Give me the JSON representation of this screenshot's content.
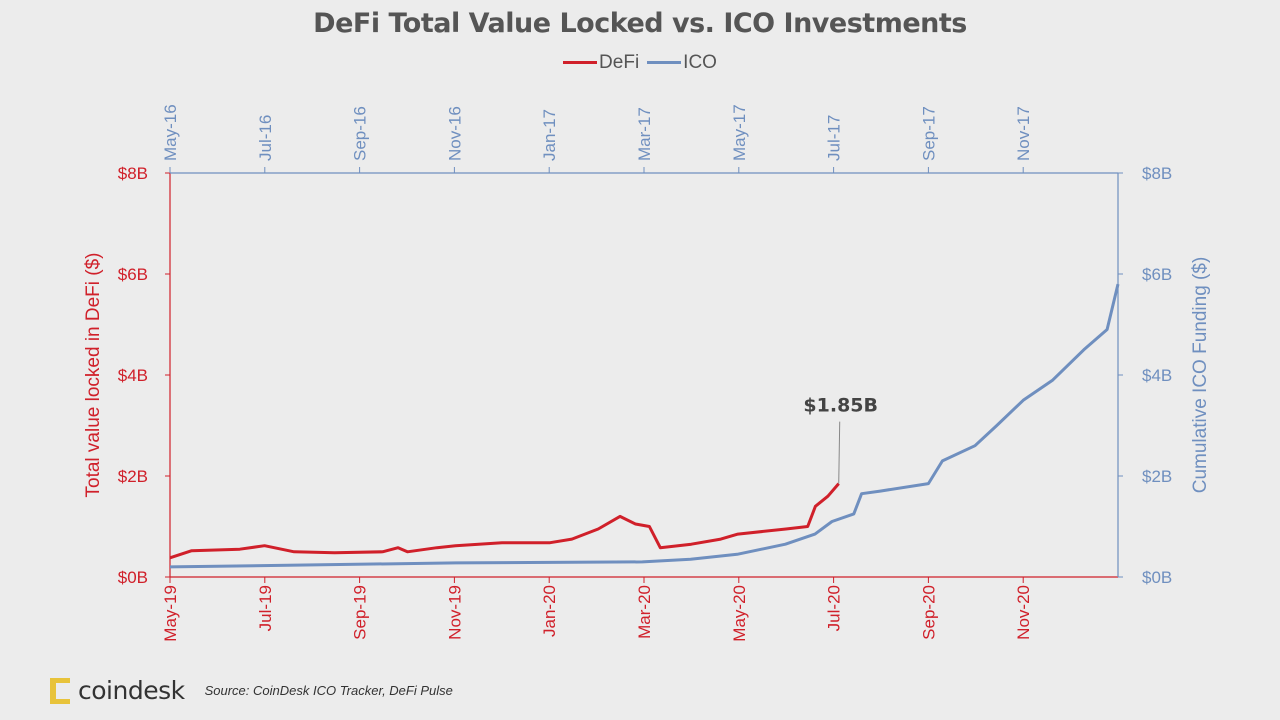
{
  "chart_data": {
    "type": "line",
    "title": "DeFi Total Value Locked vs. ICO Investments",
    "legend": {
      "placement": "top-center",
      "entries": [
        "DeFi",
        "ICO"
      ]
    },
    "grid": false,
    "axes": {
      "left_y": {
        "label": "Total value locked in DeFi ($)",
        "range": [
          0,
          8
        ],
        "ticks": [
          "$0B",
          "$2B",
          "$4B",
          "$6B",
          "$8B"
        ],
        "color": "#d0202a"
      },
      "right_y": {
        "label": "Cumulative ICO Funding ($)",
        "range": [
          0,
          8
        ],
        "ticks": [
          "$0B",
          "$2B",
          "$4B",
          "$6B",
          "$8B"
        ],
        "color": "#6f8fbf"
      },
      "bottom_x": {
        "range": [
          "2019-05-01",
          "2021-01-01"
        ],
        "ticks": [
          "May-19",
          "Jul-19",
          "Sep-19",
          "Nov-19",
          "Jan-20",
          "Mar-20",
          "May-20",
          "Jul-20",
          "Sep-20",
          "Nov-20"
        ],
        "color": "#d0202a"
      },
      "top_x": {
        "range": [
          "2016-05-01",
          "2018-01-01"
        ],
        "ticks": [
          "May-16",
          "Jul-16",
          "Sep-16",
          "Nov-16",
          "Jan-17",
          "Mar-17",
          "May-17",
          "Jul-17",
          "Sep-17",
          "Nov-17"
        ],
        "color": "#6f8fbf"
      }
    },
    "series": [
      {
        "name": "DeFi",
        "axis": "bottom-left",
        "color": "#d0202a",
        "unit": "$B",
        "points": [
          [
            "2019-05-01",
            0.38
          ],
          [
            "2019-05-15",
            0.52
          ],
          [
            "2019-06-15",
            0.55
          ],
          [
            "2019-07-01",
            0.62
          ],
          [
            "2019-07-20",
            0.5
          ],
          [
            "2019-08-15",
            0.48
          ],
          [
            "2019-09-15",
            0.5
          ],
          [
            "2019-09-25",
            0.58
          ],
          [
            "2019-10-01",
            0.5
          ],
          [
            "2019-10-20",
            0.58
          ],
          [
            "2019-11-01",
            0.62
          ],
          [
            "2019-12-01",
            0.68
          ],
          [
            "2020-01-01",
            0.68
          ],
          [
            "2020-01-15",
            0.75
          ],
          [
            "2020-02-01",
            0.95
          ],
          [
            "2020-02-15",
            1.2
          ],
          [
            "2020-02-25",
            1.05
          ],
          [
            "2020-03-05",
            1.0
          ],
          [
            "2020-03-12",
            0.58
          ],
          [
            "2020-04-01",
            0.65
          ],
          [
            "2020-04-20",
            0.75
          ],
          [
            "2020-05-01",
            0.85
          ],
          [
            "2020-06-01",
            0.95
          ],
          [
            "2020-06-15",
            1.0
          ],
          [
            "2020-06-20",
            1.4
          ],
          [
            "2020-06-28",
            1.6
          ],
          [
            "2020-07-05",
            1.85
          ]
        ]
      },
      {
        "name": "ICO",
        "axis": "top-right",
        "color": "#6f8fbf",
        "unit": "$B",
        "points": [
          [
            "2016-05-01",
            0.2
          ],
          [
            "2016-11-01",
            0.28
          ],
          [
            "2017-03-01",
            0.3
          ],
          [
            "2017-04-01",
            0.35
          ],
          [
            "2017-05-01",
            0.45
          ],
          [
            "2017-06-01",
            0.65
          ],
          [
            "2017-06-20",
            0.85
          ],
          [
            "2017-07-01",
            1.1
          ],
          [
            "2017-07-15",
            1.25
          ],
          [
            "2017-07-20",
            1.65
          ],
          [
            "2017-08-01",
            1.7
          ],
          [
            "2017-09-01",
            1.85
          ],
          [
            "2017-09-10",
            2.3
          ],
          [
            "2017-10-01",
            2.6
          ],
          [
            "2017-10-15",
            3.0
          ],
          [
            "2017-11-01",
            3.5
          ],
          [
            "2017-11-20",
            3.9
          ],
          [
            "2017-12-10",
            4.5
          ],
          [
            "2017-12-25",
            4.9
          ],
          [
            "2018-01-01",
            5.8
          ]
        ]
      }
    ],
    "annotations": [
      {
        "text": "$1.85B",
        "series": "DeFi",
        "x": "2020-07-05",
        "y": 1.85
      }
    ]
  },
  "footer": {
    "logo": "coindesk",
    "source": "Source:  CoinDesk ICO Tracker,  DeFi Pulse"
  }
}
